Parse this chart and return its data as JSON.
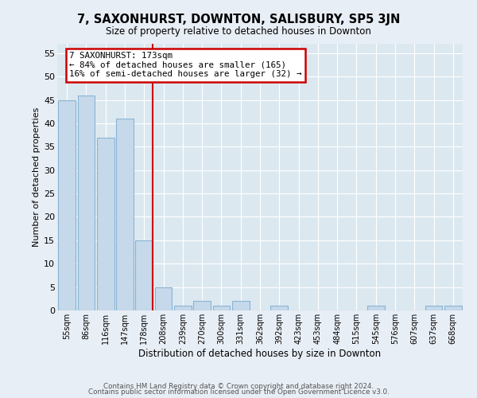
{
  "title": "7, SAXONHURST, DOWNTON, SALISBURY, SP5 3JN",
  "subtitle": "Size of property relative to detached houses in Downton",
  "xlabel": "Distribution of detached houses by size in Downton",
  "ylabel": "Number of detached properties",
  "bar_labels": [
    "55sqm",
    "86sqm",
    "116sqm",
    "147sqm",
    "178sqm",
    "208sqm",
    "239sqm",
    "270sqm",
    "300sqm",
    "331sqm",
    "362sqm",
    "392sqm",
    "423sqm",
    "453sqm",
    "484sqm",
    "515sqm",
    "545sqm",
    "576sqm",
    "607sqm",
    "637sqm",
    "668sqm"
  ],
  "bar_values": [
    45,
    46,
    37,
    41,
    15,
    5,
    1,
    2,
    1,
    2,
    0,
    1,
    0,
    0,
    0,
    0,
    1,
    0,
    0,
    1,
    1
  ],
  "bar_color": "#c5d9ea",
  "bar_edge_color": "#8ab4d4",
  "ref_line_color": "#cc0000",
  "ref_line_index": 4,
  "annotation_title": "7 SAXONHURST: 173sqm",
  "annotation_line1": "← 84% of detached houses are smaller (165)",
  "annotation_line2": "16% of semi-detached houses are larger (32) →",
  "annotation_box_edgecolor": "#cc0000",
  "ylim": [
    0,
    57
  ],
  "yticks": [
    0,
    5,
    10,
    15,
    20,
    25,
    30,
    35,
    40,
    45,
    50,
    55
  ],
  "footer1": "Contains HM Land Registry data © Crown copyright and database right 2024.",
  "footer2": "Contains public sector information licensed under the Open Government Licence v3.0.",
  "fig_facecolor": "#e8eef5",
  "plot_facecolor": "#dce8f0"
}
